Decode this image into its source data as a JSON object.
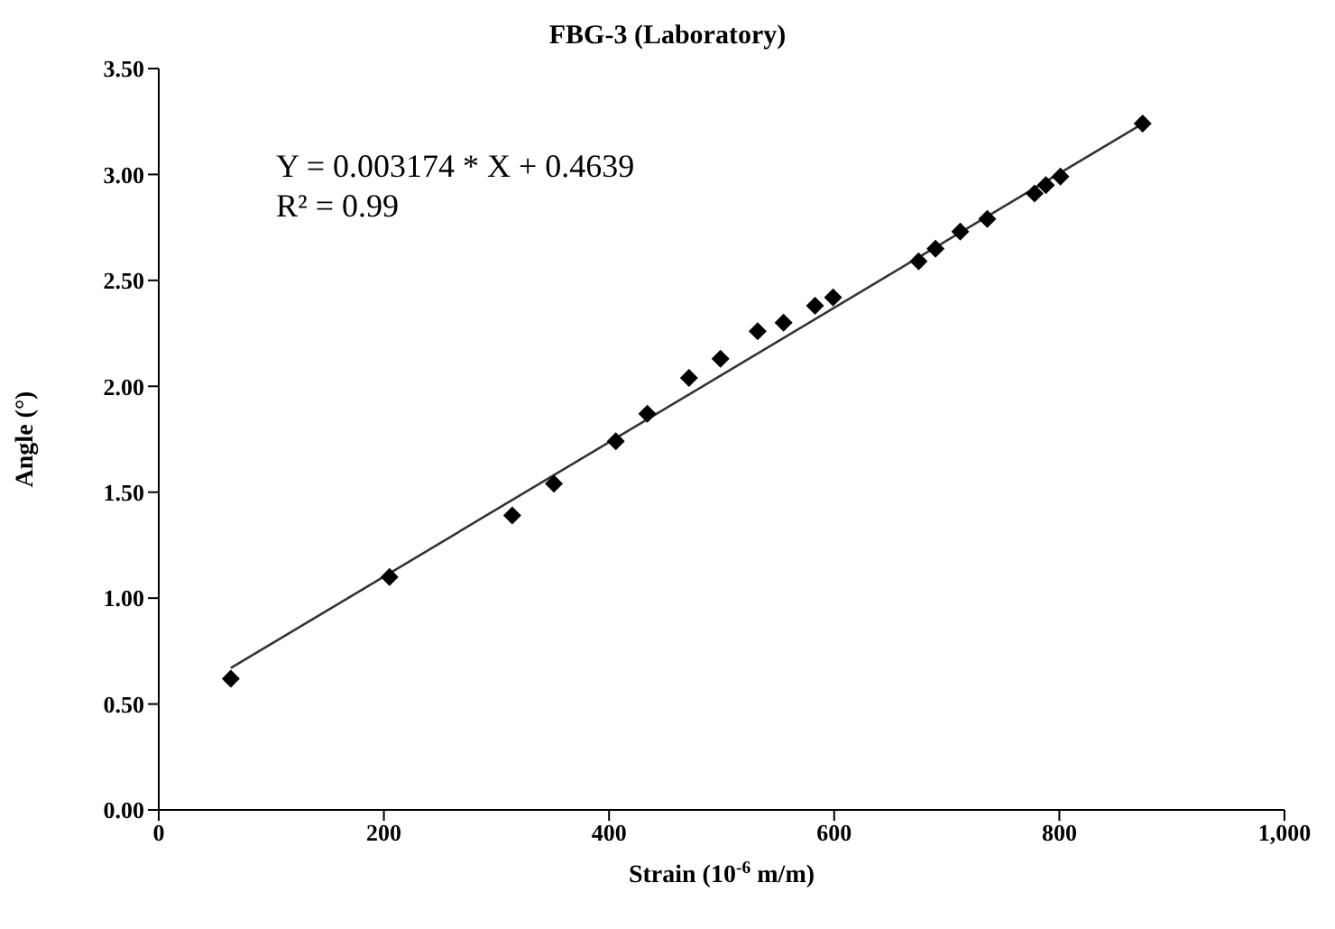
{
  "chart_data": {
    "type": "scatter",
    "title": "FBG-3 (Laboratory)",
    "xlabel": "Strain (10$^{-6}$ m/m)",
    "ylabel": "Angle (°)",
    "annotations": [
      "Y = 0.003174 * X + 0.4639",
      "R² = 0.99"
    ],
    "x": [
      64,
      205,
      314,
      351,
      406,
      434,
      471,
      499,
      532,
      555,
      583,
      599,
      675,
      690,
      712,
      736,
      778,
      788,
      801,
      874
    ],
    "series": [
      {
        "color": "#000000",
        "marker": "diamond",
        "values": [
          0.62,
          1.1,
          1.39,
          1.54,
          1.74,
          1.87,
          2.04,
          2.13,
          2.26,
          2.3,
          2.38,
          2.42,
          2.59,
          2.65,
          2.73,
          2.79,
          2.91,
          2.95,
          2.99,
          3.24
        ]
      },
      {
        "type": "line",
        "color": "#333333",
        "x": [
          64,
          874
        ],
        "values": [
          0.67,
          3.24
        ],
        "marker": "none",
        "line_style": "solid"
      }
    ],
    "xlim": [
      0,
      1000
    ],
    "xticks": [
      0,
      200,
      400,
      600,
      800,
      {
        "value": 1000,
        "label": "1,000"
      }
    ],
    "ylim": [
      0,
      3.5
    ],
    "yticks": [
      {
        "value": 0,
        "label": "0.00"
      },
      {
        "value": 0.5,
        "label": "0.50"
      },
      {
        "value": 1,
        "label": "1.00"
      },
      {
        "value": 1.5,
        "label": "1.50"
      },
      {
        "value": 2,
        "label": "2.00"
      },
      {
        "value": 2.5,
        "label": "2.50"
      },
      {
        "value": 3,
        "label": "3.00"
      },
      {
        "value": 3.5,
        "label": "3.50"
      }
    ],
    "grid": false,
    "legend": false
  }
}
